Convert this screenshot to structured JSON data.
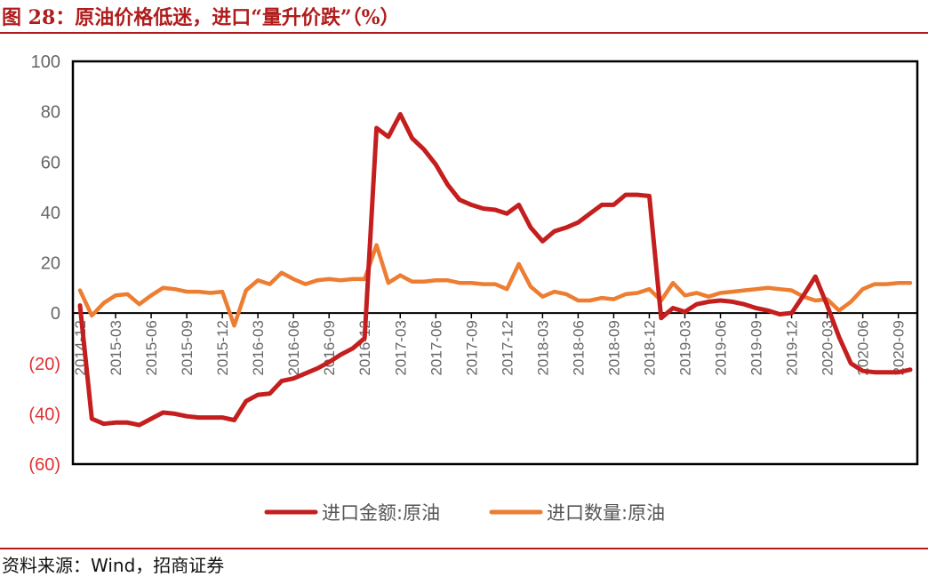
{
  "header": {
    "title": "图 28：原油价格低迷，进口“量升价跌”（%）"
  },
  "footer": {
    "source": "资料来源：Wind，招商证券"
  },
  "colors": {
    "accent": "#b01c1c",
    "series1": "#c41e1e",
    "series2": "#ed7d31",
    "negative_tick": "#e03030",
    "positive_tick": "#666666"
  },
  "chart_data": {
    "type": "line",
    "title": "",
    "xlabel": "",
    "ylabel": "",
    "ylim": [
      -60,
      100
    ],
    "yticks": [
      100,
      80,
      60,
      40,
      20,
      0,
      -20,
      -40,
      -60
    ],
    "ytick_labels": [
      "100",
      "80",
      "60",
      "40",
      "20",
      "0",
      "(20)",
      "(40)",
      "(60)"
    ],
    "xtick_labels": [
      "2014-12",
      "2015-03",
      "2015-06",
      "2015-09",
      "2015-12",
      "2016-03",
      "2016-06",
      "2016-09",
      "2016-12",
      "2017-03",
      "2017-06",
      "2017-09",
      "2017-12",
      "2018-03",
      "2018-06",
      "2018-09",
      "2018-12",
      "2019-03",
      "2019-06",
      "2019-09",
      "2019-12",
      "2020-03",
      "2020-06",
      "2020-09"
    ],
    "x": [
      "2014-12",
      "2015-01",
      "2015-02",
      "2015-03",
      "2015-04",
      "2015-05",
      "2015-06",
      "2015-07",
      "2015-08",
      "2015-09",
      "2015-10",
      "2015-11",
      "2015-12",
      "2016-01",
      "2016-02",
      "2016-03",
      "2016-04",
      "2016-05",
      "2016-06",
      "2016-07",
      "2016-08",
      "2016-09",
      "2016-10",
      "2016-11",
      "2016-12",
      "2017-01",
      "2017-02",
      "2017-03",
      "2017-04",
      "2017-05",
      "2017-06",
      "2017-07",
      "2017-08",
      "2017-09",
      "2017-10",
      "2017-11",
      "2017-12",
      "2018-01",
      "2018-02",
      "2018-03",
      "2018-04",
      "2018-05",
      "2018-06",
      "2018-07",
      "2018-08",
      "2018-09",
      "2018-10",
      "2018-11",
      "2018-12",
      "2019-01",
      "2019-02",
      "2019-03",
      "2019-04",
      "2019-05",
      "2019-06",
      "2019-07",
      "2019-08",
      "2019-09",
      "2019-10",
      "2019-11",
      "2019-12",
      "2020-01",
      "2020-02",
      "2020-03",
      "2020-04",
      "2020-05",
      "2020-06",
      "2020-07",
      "2020-08",
      "2020-09",
      "2020-10"
    ],
    "series": [
      {
        "name": "进口金额:原油",
        "values": [
          3,
          -42,
          -44,
          -43.5,
          -43.5,
          -44.5,
          -42,
          -39.5,
          -40,
          -41,
          -41.5,
          -41.5,
          -41.5,
          -42.5,
          -35,
          -32.5,
          -32,
          -27,
          -26,
          -24,
          -22,
          -19.5,
          -16.5,
          -14,
          -10,
          73.5,
          70,
          79,
          69.5,
          65,
          59,
          51,
          45,
          43,
          41.5,
          41,
          39.5,
          43,
          34,
          28.5,
          32.5,
          34,
          36,
          39.5,
          43,
          43,
          47,
          47,
          46.5,
          -2,
          2,
          0.5,
          3.5,
          4.5,
          5,
          4.5,
          3.5,
          2,
          1,
          -0.5,
          0,
          7,
          14.5,
          3,
          -9.5,
          -20,
          -23,
          -23.5,
          -23.5,
          -23.5,
          -22.5
        ]
      },
      {
        "name": "进口数量:原油",
        "values": [
          9,
          -1,
          4,
          7,
          7.5,
          3.5,
          7,
          10,
          9.5,
          8.5,
          8.5,
          8,
          8.5,
          -5,
          9,
          13,
          11.5,
          16,
          13.5,
          11.5,
          13,
          13.5,
          13,
          13.5,
          13.5,
          27,
          12,
          15,
          12.5,
          12.5,
          13,
          13,
          12,
          12,
          11.5,
          11.5,
          9.5,
          19.5,
          10.5,
          6.5,
          8.5,
          7.5,
          5,
          5,
          6,
          5.5,
          7.5,
          8,
          9.5,
          5,
          12,
          7,
          8,
          6.5,
          8,
          8.5,
          9,
          9.5,
          10,
          9.5,
          9,
          6.5,
          5,
          5.5,
          1,
          4.5,
          9.5,
          11.5,
          11.5,
          12,
          12
        ]
      }
    ]
  }
}
